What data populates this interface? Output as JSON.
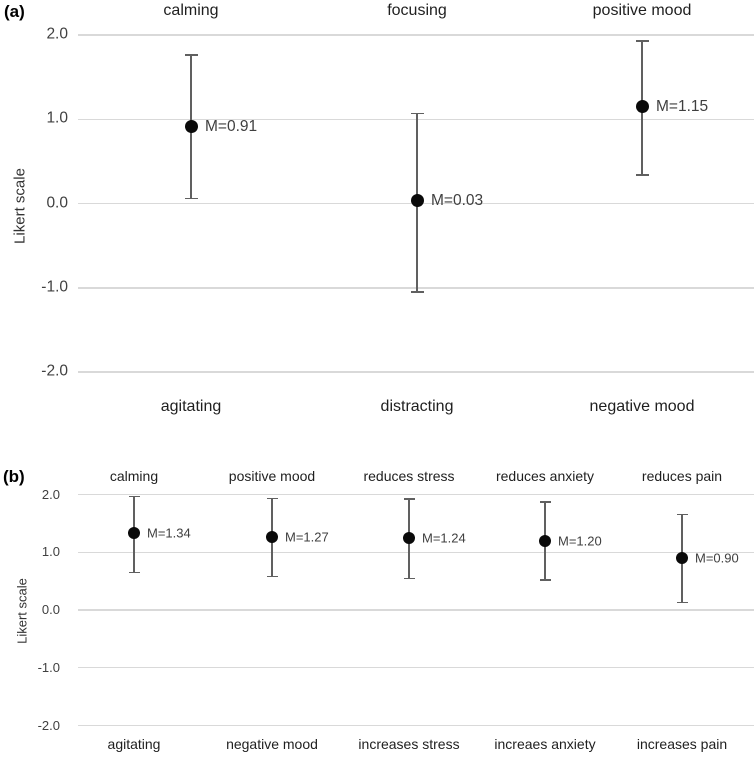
{
  "figure_title": "Likert scale ratings figure",
  "colors": {
    "background": "#ffffff",
    "gridline": "#d9d9d9",
    "error_bar": "#606060",
    "dot": "#0a0a0a",
    "mean_label_text": "#3f3f3f",
    "category_text": "#1f1f1f",
    "tick_text": "#404040",
    "panel_letter": "#000000"
  },
  "chart_data": [
    {
      "type": "scatter",
      "subtype": "mean-with-error-bars",
      "panel_label": "(a)",
      "ylabel": "Likert scale",
      "ylim": [
        -2.0,
        2.0
      ],
      "yticks": [
        "2.0",
        "1.0",
        "0.0",
        "-1.0",
        "-2.0"
      ],
      "grid": true,
      "legend": "none",
      "categories_top": [
        "calming",
        "focusing",
        "positive mood"
      ],
      "categories_bottom": [
        "agitating",
        "distracting",
        "negative mood"
      ],
      "points": [
        {
          "top_label": "calming",
          "bottom_label": "agitating",
          "mean": 0.91,
          "mean_label": "M=0.91",
          "ci_low": 0.06,
          "ci_high": 1.76
        },
        {
          "top_label": "focusing",
          "bottom_label": "distracting",
          "mean": 0.03,
          "mean_label": "M=0.03",
          "ci_low": -1.05,
          "ci_high": 1.07
        },
        {
          "top_label": "positive mood",
          "bottom_label": "negative mood",
          "mean": 1.15,
          "mean_label": "M=1.15",
          "ci_low": 0.34,
          "ci_high": 1.93
        }
      ]
    },
    {
      "type": "scatter",
      "subtype": "mean-with-error-bars",
      "panel_label": "(b)",
      "ylabel": "Likert scale",
      "ylim": [
        -2.0,
        2.0
      ],
      "yticks": [
        "2.0",
        "1.0",
        "0.0",
        "-1.0",
        "-2.0"
      ],
      "grid": true,
      "legend": "none",
      "categories_top": [
        "calming",
        "positive mood",
        "reduces stress",
        "reduces anxiety",
        "reduces pain"
      ],
      "categories_bottom": [
        "agitating",
        "negative mood",
        "increases stress",
        "increaes anxiety",
        "increases pain"
      ],
      "points": [
        {
          "top_label": "calming",
          "bottom_label": "agitating",
          "mean": 1.34,
          "mean_label": "M=1.34",
          "ci_low": 0.65,
          "ci_high": 1.97
        },
        {
          "top_label": "positive mood",
          "bottom_label": "negative mood",
          "mean": 1.27,
          "mean_label": "M=1.27",
          "ci_low": 0.58,
          "ci_high": 1.93
        },
        {
          "top_label": "reduces stress",
          "bottom_label": "increases stress",
          "mean": 1.24,
          "mean_label": "M=1.24",
          "ci_low": 0.55,
          "ci_high": 1.92
        },
        {
          "top_label": "reduces anxiety",
          "bottom_label": "increaes anxiety",
          "mean": 1.2,
          "mean_label": "M=1.20",
          "ci_low": 0.52,
          "ci_high": 1.87
        },
        {
          "top_label": "reduces pain",
          "bottom_label": "increases pain",
          "mean": 0.9,
          "mean_label": "M=0.90",
          "ci_low": 0.13,
          "ci_high": 1.65
        }
      ]
    }
  ]
}
